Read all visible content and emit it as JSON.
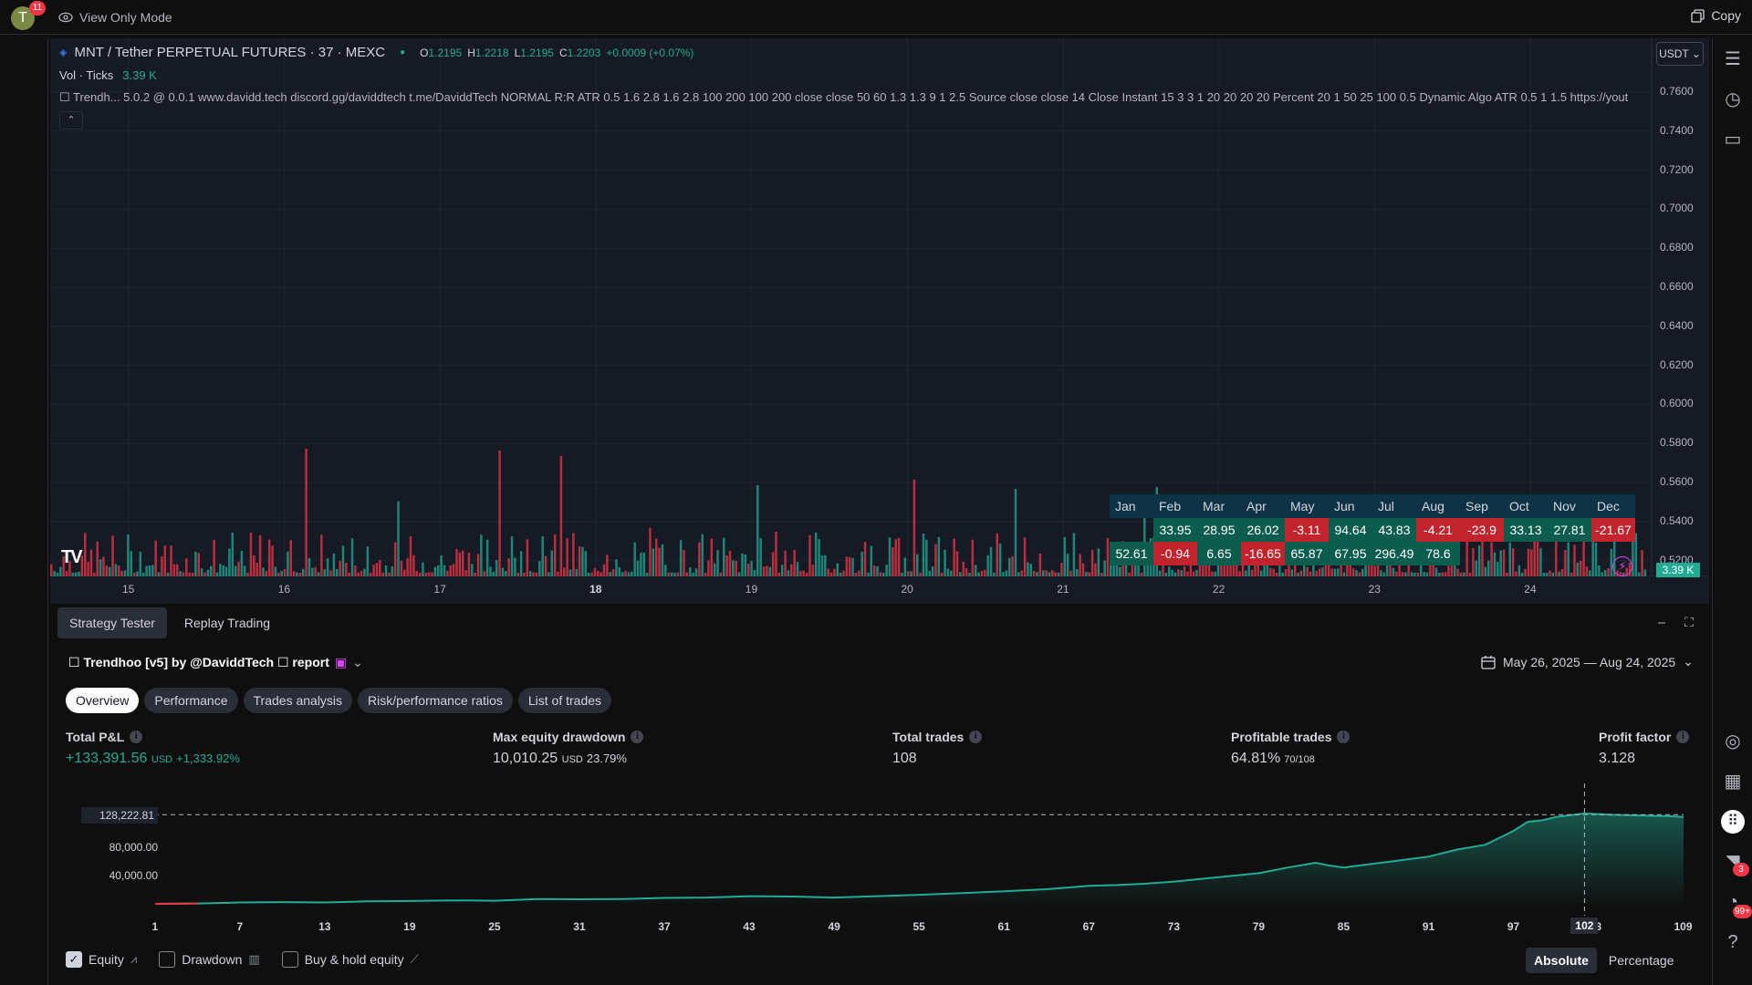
{
  "topbar": {
    "avatar_letter": "T",
    "avatar_badge": "11",
    "view_only_label": "View Only Mode",
    "copy_label": "Copy"
  },
  "chart": {
    "symbol_title": "MNT / Tether PERPETUAL FUTURES · 37 · MEXC",
    "ohlc": {
      "o_label": "O",
      "o": "1.2195",
      "h_label": "H",
      "h": "1.2218",
      "l_label": "L",
      "l": "1.2195",
      "c_label": "C",
      "c": "1.2203",
      "change": "+0.0009 (+0.07%)"
    },
    "vol_label": "Vol · Ticks",
    "vol_value": "3.39 K",
    "indicator_line": "☐ Trendh...  5.0.2 @ 0.0.1 www.davidd.tech discord.gg/daviddtech t.me/DaviddTech NORMAL R:R ATR 0.5 1.6 2.8 1.6 2.8 100 200 100 200 close close 50 60 1.3 1.3 9 1 2.5 Source close close 14 Close Instant 15 3 3 1 20 20 20 20 Percent 20 1 50 25 100 0.5 Dynamic Algo ATR 0.5 1 1.5 https://yout",
    "collapse_glyph": "⌃",
    "currency_button": "USDT ⌄",
    "price_labels": [
      "0.7600",
      "0.7400",
      "0.7200",
      "0.7000",
      "0.6800",
      "0.6600",
      "0.6400",
      "0.6200",
      "0.6000",
      "0.5800",
      "0.5600",
      "0.5400",
      "0.5200"
    ],
    "time_labels": [
      "15",
      "16",
      "17",
      "18",
      "19",
      "20",
      "21",
      "22",
      "23",
      "24"
    ],
    "time_bold": "18",
    "logo_text": "TV",
    "vol_tag": "3.39 K",
    "accent_up": "#22ab94",
    "accent_down": "#f23645",
    "bolt_glyph": "⚡"
  },
  "monthly_table": {
    "months": [
      "Jan",
      "Feb",
      "Mar",
      "Apr",
      "May",
      "Jun",
      "Jul",
      "Aug",
      "Sep",
      "Oct",
      "Nov",
      "Dec"
    ],
    "row1": [
      "",
      "33.95",
      "28.95",
      "26.02",
      "-3.11",
      "94.64",
      "43.83",
      "-4.21",
      "-23.9",
      "33.13",
      "27.81",
      "-21.67"
    ],
    "row2": [
      "52.61",
      "-0.94",
      "6.65",
      "-16.65",
      "65.87",
      "67.95",
      "296.49",
      "78.6",
      "",
      "",
      "",
      ""
    ]
  },
  "bottom": {
    "tabs": [
      "Strategy Tester",
      "Replay Trading"
    ],
    "strategy_name": "☐ Trendhoo [v5] by @DaviddTech ☐ report",
    "date_range": "May 26, 2025 — Aug 24, 2025",
    "sub_tabs": [
      "Overview",
      "Performance",
      "Trades analysis",
      "Risk/performance ratios",
      "List of trades"
    ],
    "metrics": {
      "total_pnl": {
        "label": "Total P&L",
        "value": "+133,391.56",
        "unit": "USD",
        "pct": "+1,333.92%"
      },
      "max_dd": {
        "label": "Max equity drawdown",
        "value": "10,010.25",
        "unit": "USD",
        "pct": "23.79%"
      },
      "total_trades": {
        "label": "Total trades",
        "value": "108"
      },
      "profitable": {
        "label": "Profitable trades",
        "value": "64.81%",
        "sub": "70/108"
      },
      "profit_factor": {
        "label": "Profit factor",
        "value": "3.128"
      }
    },
    "equity_y_labels": [
      "128,222.81",
      "80,000.00",
      "40,000.00"
    ],
    "equity_x_labels": [
      "1",
      "7",
      "13",
      "19",
      "25",
      "31",
      "37",
      "43",
      "49",
      "55",
      "61",
      "67",
      "73",
      "79",
      "85",
      "91",
      "97",
      "3",
      "109"
    ],
    "crosshair_x": "102",
    "options": {
      "equity": "Equity",
      "drawdown": "Drawdown",
      "buyhold": "Buy & hold equity"
    },
    "modes": [
      "Absolute",
      "Percentage"
    ]
  },
  "chart_data": {
    "type": "area",
    "title": "",
    "xlabel": "",
    "ylabel": "",
    "ylim": [
      0,
      160000
    ],
    "series": [
      {
        "x": [
          1,
          4,
          7,
          10,
          13,
          16,
          19,
          22,
          25,
          28,
          31,
          34,
          37,
          40,
          43,
          46,
          49,
          52,
          55,
          58,
          61,
          64,
          67,
          69,
          71,
          73,
          76,
          79,
          81,
          83,
          84,
          85,
          86,
          88,
          91,
          93,
          95,
          97,
          98,
          99,
          100,
          102,
          104,
          106,
          108,
          109
        ],
        "values": [
          0,
          500,
          2000,
          2500,
          2000,
          3500,
          4000,
          5000,
          4500,
          7000,
          6500,
          7000,
          8500,
          9000,
          11000,
          10500,
          9000,
          11000,
          13000,
          15500,
          18000,
          21000,
          26000,
          27000,
          29000,
          32000,
          38000,
          44000,
          52000,
          59000,
          55000,
          52000,
          55000,
          60000,
          68000,
          78000,
          85000,
          105000,
          118000,
          120000,
          125000,
          130000,
          128000,
          127000,
          126000,
          125000
        ]
      }
    ]
  }
}
